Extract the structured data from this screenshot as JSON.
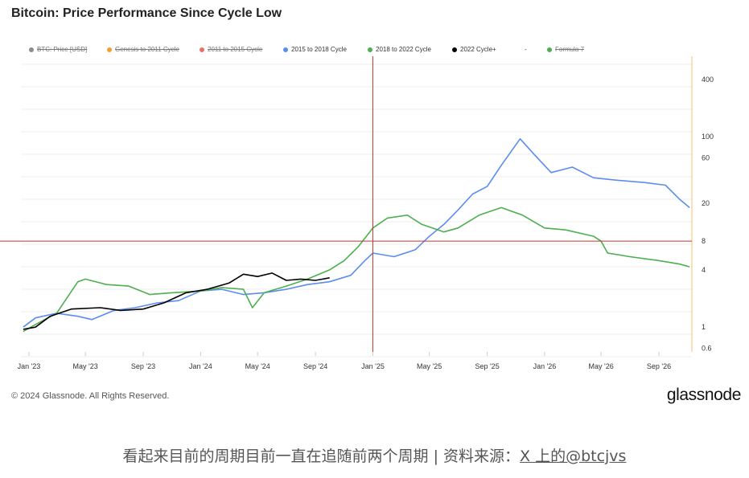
{
  "title": "Bitcoin: Price Performance Since Cycle Low",
  "legend": [
    {
      "label": "BTC: Price [USD]",
      "color": "#8c8c8c",
      "enabled": false
    },
    {
      "label": "Genesis to 2011 Cycle",
      "color": "#f0a030",
      "enabled": false
    },
    {
      "label": "2011 to 2015 Cycle",
      "color": "#e8706a",
      "enabled": false
    },
    {
      "label": "2015 to 2018 Cycle",
      "color": "#5b8def",
      "enabled": true
    },
    {
      "label": "2018 to 2022 Cycle",
      "color": "#4caf50",
      "enabled": true
    },
    {
      "label": "2022 Cycle+",
      "color": "#000000",
      "enabled": true
    },
    {
      "label": "-",
      "color": "",
      "enabled": true
    },
    {
      "label": "Formula 7",
      "color": "#4caf50",
      "enabled": false
    }
  ],
  "chart_data": {
    "type": "line",
    "title": "Bitcoin: Price Performance Since Cycle Low",
    "x_ticks": [
      "Jan '23",
      "May '23",
      "Sep '23",
      "Jan '24",
      "May '24",
      "Sep '24",
      "Jan '25",
      "May '25",
      "Sep '25",
      "Jan '26",
      "May '26",
      "Sep '26"
    ],
    "y_ticks": [
      "400",
      "100",
      "60",
      "20",
      "8",
      "4",
      "1",
      "0.6"
    ],
    "y_scale": "log",
    "ylim": [
      0.55,
      700
    ],
    "xlim": [
      "2022-12-15",
      "2026-11-10"
    ],
    "crosshair": {
      "x": "2025-01-01",
      "y": 8
    },
    "series": [
      {
        "name": "2015 to 2018 Cycle",
        "color": "#5b8def",
        "points": [
          [
            "2022-12-20",
            1.0
          ],
          [
            "2023-01-15",
            1.25
          ],
          [
            "2023-03-01",
            1.4
          ],
          [
            "2023-04-15",
            1.3
          ],
          [
            "2023-05-15",
            1.2
          ],
          [
            "2023-07-01",
            1.5
          ],
          [
            "2023-08-15",
            1.6
          ],
          [
            "2023-10-01",
            1.8
          ],
          [
            "2023-11-15",
            1.9
          ],
          [
            "2024-01-01",
            2.4
          ],
          [
            "2024-02-15",
            2.5
          ],
          [
            "2024-04-01",
            2.2
          ],
          [
            "2024-05-15",
            2.3
          ],
          [
            "2024-07-01",
            2.5
          ],
          [
            "2024-08-15",
            2.8
          ],
          [
            "2024-10-01",
            3.0
          ],
          [
            "2024-11-15",
            3.5
          ],
          [
            "2024-12-15",
            5.0
          ],
          [
            "2025-01-01",
            6.0
          ],
          [
            "2025-02-15",
            5.5
          ],
          [
            "2025-04-01",
            6.5
          ],
          [
            "2025-05-01",
            9.0
          ],
          [
            "2025-06-01",
            12.0
          ],
          [
            "2025-07-01",
            17.0
          ],
          [
            "2025-08-01",
            25.0
          ],
          [
            "2025-09-01",
            30.0
          ],
          [
            "2025-10-01",
            50.0
          ],
          [
            "2025-11-10",
            95.0
          ],
          [
            "2025-12-10",
            65.0
          ],
          [
            "2026-01-15",
            42.0
          ],
          [
            "2026-03-01",
            48.0
          ],
          [
            "2026-04-15",
            37.0
          ],
          [
            "2026-06-01",
            35.0
          ],
          [
            "2026-08-01",
            33.0
          ],
          [
            "2026-09-15",
            31.0
          ],
          [
            "2026-10-15",
            22.0
          ],
          [
            "2026-11-05",
            18.0
          ]
        ]
      },
      {
        "name": "2018 to 2022 Cycle",
        "color": "#4caf50",
        "points": [
          [
            "2022-12-20",
            0.9
          ],
          [
            "2023-01-20",
            1.1
          ],
          [
            "2023-03-01",
            1.4
          ],
          [
            "2023-04-15",
            3.0
          ],
          [
            "2023-05-01",
            3.2
          ],
          [
            "2023-06-15",
            2.8
          ],
          [
            "2023-08-01",
            2.7
          ],
          [
            "2023-09-15",
            2.2
          ],
          [
            "2023-11-01",
            2.3
          ],
          [
            "2024-01-01",
            2.4
          ],
          [
            "2024-02-15",
            2.6
          ],
          [
            "2024-04-01",
            2.5
          ],
          [
            "2024-04-20",
            1.6
          ],
          [
            "2024-05-15",
            2.3
          ],
          [
            "2024-07-01",
            2.7
          ],
          [
            "2024-08-15",
            3.2
          ],
          [
            "2024-10-01",
            4.0
          ],
          [
            "2024-11-01",
            5.0
          ],
          [
            "2024-12-01",
            7.0
          ],
          [
            "2025-01-01",
            11.0
          ],
          [
            "2025-02-01",
            14.0
          ],
          [
            "2025-03-15",
            15.0
          ],
          [
            "2025-04-15",
            12.0
          ],
          [
            "2025-06-01",
            10.0
          ],
          [
            "2025-07-01",
            11.0
          ],
          [
            "2025-08-15",
            15.0
          ],
          [
            "2025-10-01",
            18.0
          ],
          [
            "2025-11-15",
            15.0
          ],
          [
            "2026-01-01",
            11.0
          ],
          [
            "2026-02-15",
            10.5
          ],
          [
            "2026-04-15",
            9.0
          ],
          [
            "2026-05-01",
            8.0
          ],
          [
            "2026-05-15",
            6.0
          ],
          [
            "2026-07-01",
            5.5
          ],
          [
            "2026-09-01",
            5.0
          ],
          [
            "2026-10-15",
            4.6
          ],
          [
            "2026-11-05",
            4.3
          ]
        ]
      },
      {
        "name": "2022 Cycle+",
        "color": "#000000",
        "points": [
          [
            "2022-12-20",
            0.95
          ],
          [
            "2023-01-15",
            1.0
          ],
          [
            "2023-02-15",
            1.3
          ],
          [
            "2023-04-01",
            1.55
          ],
          [
            "2023-06-01",
            1.6
          ],
          [
            "2023-07-15",
            1.5
          ],
          [
            "2023-09-01",
            1.55
          ],
          [
            "2023-10-15",
            1.8
          ],
          [
            "2023-12-01",
            2.3
          ],
          [
            "2024-01-15",
            2.5
          ],
          [
            "2024-03-01",
            2.9
          ],
          [
            "2024-04-01",
            3.6
          ],
          [
            "2024-05-01",
            3.4
          ],
          [
            "2024-06-01",
            3.7
          ],
          [
            "2024-07-01",
            3.1
          ],
          [
            "2024-08-01",
            3.2
          ],
          [
            "2024-09-01",
            3.1
          ],
          [
            "2024-10-01",
            3.3
          ]
        ]
      }
    ]
  },
  "footer": {
    "copyright": "© 2024 Glassnode. All Rights Reserved.",
    "brand": "glassnode"
  },
  "caption": {
    "text": "看起来目前的周期目前一直在追随前两个周期 | 资料来源：",
    "link": "X 上的@btcjvs"
  }
}
